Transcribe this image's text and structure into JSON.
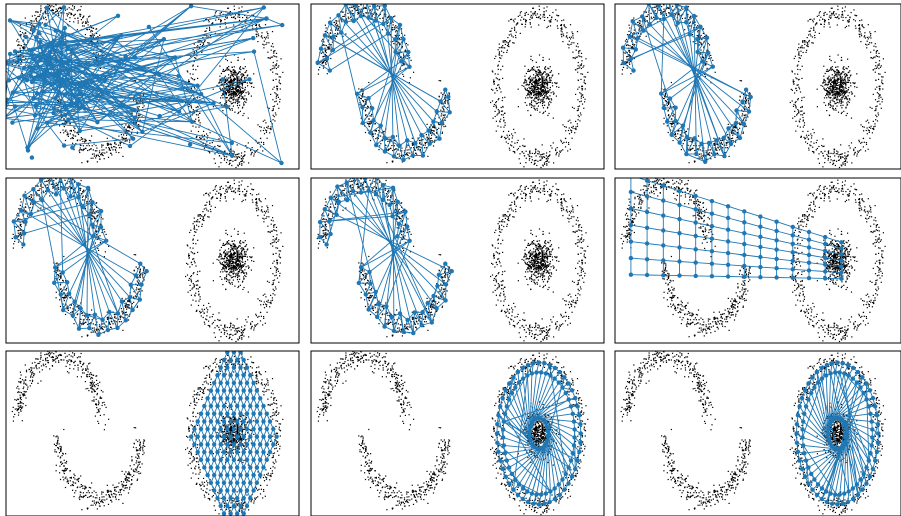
{
  "figure": {
    "rows": 3,
    "cols": 3,
    "point_color": "#000000",
    "net_color": "#1f77b4",
    "frame_color": "#000000"
  },
  "chart_data": [
    {
      "type": "scatter",
      "panel": "row1-col1",
      "network": "random",
      "datasets": [
        "two-moons",
        "ring-and-blob"
      ],
      "xlabel": "",
      "ylabel": "",
      "ticks": false,
      "network_coverage": "whole-panel"
    },
    {
      "type": "scatter",
      "panel": "row1-col2",
      "network": "fit-moons",
      "datasets": [
        "two-moons",
        "ring-and-blob"
      ],
      "xlabel": "",
      "ylabel": "",
      "ticks": false
    },
    {
      "type": "scatter",
      "panel": "row1-col3",
      "network": "fit-moons",
      "datasets": [
        "two-moons",
        "ring-and-blob"
      ],
      "xlabel": "",
      "ylabel": "",
      "ticks": false
    },
    {
      "type": "scatter",
      "panel": "row2-col1",
      "network": "fit-moons",
      "datasets": [
        "two-moons",
        "ring-and-blob"
      ],
      "xlabel": "",
      "ylabel": "",
      "ticks": false
    },
    {
      "type": "scatter",
      "panel": "row2-col2",
      "network": "fit-moons",
      "datasets": [
        "two-moons",
        "ring-and-blob"
      ],
      "xlabel": "",
      "ylabel": "",
      "ticks": false
    },
    {
      "type": "scatter",
      "panel": "row2-col3",
      "network": "stretched-grid",
      "datasets": [
        "two-moons",
        "ring-and-blob"
      ],
      "xlabel": "",
      "ylabel": "",
      "ticks": false
    },
    {
      "type": "scatter",
      "panel": "row3-col1",
      "network": "diamond-grid",
      "datasets": [
        "two-moons",
        "ring-and-blob"
      ],
      "xlabel": "",
      "ylabel": "",
      "ticks": false
    },
    {
      "type": "scatter",
      "panel": "row3-col2",
      "network": "fit-ring",
      "datasets": [
        "two-moons",
        "ring-and-blob"
      ],
      "xlabel": "",
      "ylabel": "",
      "ticks": false
    },
    {
      "type": "scatter",
      "panel": "row3-col3",
      "network": "fit-ring",
      "datasets": [
        "two-moons",
        "ring-and-blob"
      ],
      "xlabel": "",
      "ylabel": "",
      "ticks": false
    }
  ]
}
